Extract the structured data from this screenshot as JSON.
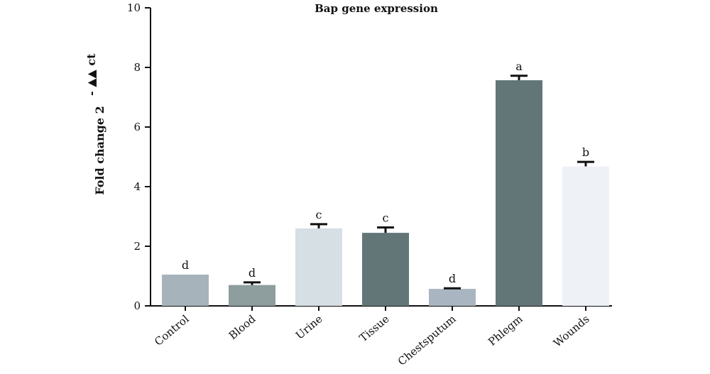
{
  "chart_data": {
    "type": "bar",
    "title": "Bap gene expression",
    "xlabel": "",
    "ylabel": "Fold change 2",
    "ylabel_superscript": "- ▲▲ ct",
    "ylim": [
      0,
      10
    ],
    "yticks": [
      "0",
      "2",
      "4",
      "6",
      "8",
      "10"
    ],
    "categories": [
      "Control",
      "Blood",
      "Urine",
      "Tissue",
      "Chestsputum",
      "Phlegm",
      "Wounds"
    ],
    "values": [
      1.05,
      0.7,
      2.6,
      2.45,
      0.57,
      7.57,
      4.68
    ],
    "errors": [
      0,
      0.09,
      0.14,
      0.18,
      0.02,
      0.15,
      0.15
    ],
    "significance": [
      "d",
      "d",
      "c",
      "c",
      "d",
      "a",
      "b"
    ],
    "colors": [
      "#a7b3bb",
      "#8e9d9e",
      "#d6dfe3",
      "#627677",
      "#a9b5c0",
      "#627677",
      "#eef1f5"
    ],
    "grid": false,
    "legend": "none"
  }
}
